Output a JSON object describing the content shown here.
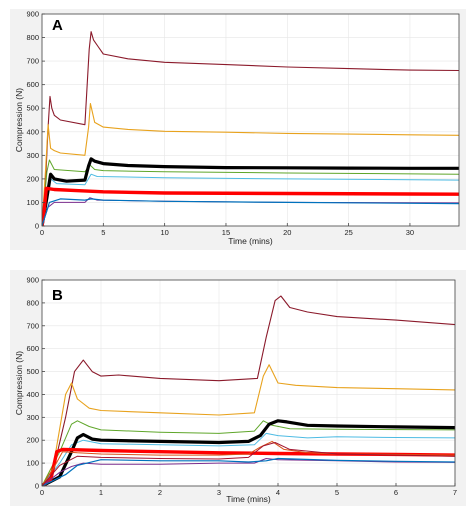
{
  "figure": {
    "colors": {
      "frame_bg": "#f2f2f2",
      "plot_bg": "#ffffff",
      "grid": "#e6e6e6"
    }
  },
  "chart_data": [
    {
      "panel_label": "A",
      "type": "line",
      "xlabel": "Time (mins)",
      "ylabel": "Compression (N)",
      "xlim": [
        0,
        34
      ],
      "ylim": [
        0,
        900
      ],
      "xticks": [
        0,
        5,
        10,
        15,
        20,
        25,
        30
      ],
      "yticks": [
        0,
        100,
        200,
        300,
        400,
        500,
        600,
        700,
        800,
        900
      ],
      "grid": true,
      "series": [
        {
          "color": "#8b1a2b",
          "width": 1.1,
          "x": [
            0,
            0.25,
            0.5,
            0.65,
            0.8,
            1.0,
            1.5,
            3.5,
            3.85,
            4.0,
            4.2,
            4.6,
            5,
            7,
            10,
            15,
            20,
            25,
            30,
            34
          ],
          "y": [
            0,
            150,
            420,
            550,
            500,
            470,
            450,
            430,
            750,
            825,
            790,
            760,
            730,
            710,
            695,
            685,
            675,
            668,
            662,
            660
          ]
        },
        {
          "color": "#e8a21d",
          "width": 1.1,
          "x": [
            0,
            0.3,
            0.5,
            0.7,
            1.0,
            1.5,
            3.5,
            3.8,
            3.95,
            4.3,
            5,
            7,
            10,
            15,
            20,
            25,
            30,
            34
          ],
          "y": [
            0,
            250,
            430,
            330,
            320,
            310,
            300,
            420,
            520,
            440,
            420,
            410,
            402,
            398,
            393,
            390,
            387,
            385
          ]
        },
        {
          "color": "#5fa62a",
          "width": 1.0,
          "x": [
            0,
            0.4,
            0.6,
            1.0,
            3.5,
            3.9,
            4.3,
            5,
            10,
            20,
            34
          ],
          "y": [
            0,
            230,
            280,
            240,
            230,
            260,
            240,
            235,
            230,
            225,
            220
          ]
        },
        {
          "color": "#4dbbe3",
          "width": 1.0,
          "x": [
            0,
            0.4,
            0.7,
            1.2,
            3.5,
            4.0,
            4.5,
            10,
            20,
            34
          ],
          "y": [
            0,
            160,
            200,
            180,
            175,
            220,
            210,
            205,
            200,
            195
          ]
        },
        {
          "color": "#000000",
          "width": 3.2,
          "x": [
            0,
            0.4,
            0.7,
            1.0,
            2,
            3.5,
            3.8,
            4.0,
            4.3,
            5,
            7,
            10,
            15,
            20,
            25,
            30,
            34
          ],
          "y": [
            0,
            120,
            220,
            200,
            190,
            195,
            255,
            285,
            275,
            265,
            257,
            252,
            248,
            247,
            246,
            245,
            245
          ]
        },
        {
          "color": "#ff0000",
          "width": 3.4,
          "x": [
            0,
            0.15,
            0.35,
            1.0,
            3,
            5,
            10,
            20,
            30,
            34
          ],
          "y": [
            0,
            50,
            160,
            155,
            150,
            145,
            140,
            138,
            136,
            135
          ]
        },
        {
          "color": "#7b2e8e",
          "width": 1.0,
          "x": [
            0,
            0.5,
            1.0,
            3.5,
            3.9,
            4.5,
            10,
            20,
            34
          ],
          "y": [
            0,
            80,
            100,
            100,
            120,
            110,
            105,
            100,
            98
          ]
        },
        {
          "color": "#0072bd",
          "width": 1.2,
          "x": [
            0,
            0.6,
            1.5,
            3.5,
            4.0,
            5,
            10,
            20,
            34
          ],
          "y": [
            0,
            100,
            115,
            110,
            115,
            110,
            105,
            100,
            95
          ]
        }
      ]
    },
    {
      "panel_label": "B",
      "type": "line",
      "xlabel": "Time (mins)",
      "ylabel": "Compression (N)",
      "xlim": [
        0,
        7
      ],
      "ylim": [
        0,
        900
      ],
      "xticks": [
        0,
        1,
        2,
        3,
        4,
        5,
        6,
        7
      ],
      "yticks": [
        0,
        100,
        200,
        300,
        400,
        500,
        600,
        700,
        800,
        900
      ],
      "grid": true,
      "series": [
        {
          "color": "#8b1a2b",
          "width": 1.1,
          "x": [
            0,
            0.2,
            0.4,
            0.55,
            0.7,
            0.85,
            1.0,
            1.3,
            2,
            3,
            3.65,
            3.8,
            3.95,
            4.05,
            4.2,
            4.5,
            5,
            6,
            7
          ],
          "y": [
            0,
            80,
            300,
            500,
            550,
            500,
            480,
            485,
            470,
            460,
            470,
            650,
            810,
            830,
            780,
            760,
            740,
            725,
            705
          ]
        },
        {
          "color": "#e8a21d",
          "width": 1.1,
          "x": [
            0,
            0.2,
            0.4,
            0.5,
            0.6,
            0.8,
            1.0,
            2,
            3,
            3.6,
            3.75,
            3.85,
            4.0,
            4.3,
            5,
            6,
            7
          ],
          "y": [
            0,
            100,
            400,
            450,
            380,
            340,
            330,
            320,
            310,
            320,
            480,
            530,
            450,
            440,
            430,
            425,
            420
          ]
        },
        {
          "color": "#5fa62a",
          "width": 1.0,
          "x": [
            0,
            0.3,
            0.5,
            0.6,
            0.8,
            1.0,
            2,
            3,
            3.6,
            3.75,
            3.9,
            4.2,
            5,
            7
          ],
          "y": [
            0,
            150,
            270,
            285,
            260,
            245,
            235,
            230,
            240,
            285,
            265,
            250,
            248,
            245
          ]
        },
        {
          "color": "#4dbbe3",
          "width": 1.0,
          "x": [
            0,
            0.3,
            0.5,
            0.7,
            1.0,
            2,
            3,
            3.6,
            3.8,
            4.0,
            4.5,
            5,
            6,
            7
          ],
          "y": [
            0,
            100,
            180,
            200,
            185,
            180,
            175,
            180,
            230,
            220,
            210,
            215,
            212,
            210
          ]
        },
        {
          "color": "#000000",
          "width": 3.2,
          "x": [
            0,
            0.3,
            0.5,
            0.6,
            0.7,
            0.85,
            1.0,
            2,
            3,
            3.5,
            3.7,
            3.85,
            4.0,
            4.15,
            4.5,
            5,
            6,
            7
          ],
          "y": [
            0,
            40,
            150,
            210,
            225,
            205,
            200,
            195,
            190,
            195,
            220,
            270,
            285,
            280,
            265,
            262,
            258,
            255
          ]
        },
        {
          "color": "#ff0000",
          "width": 3.4,
          "x": [
            0,
            0.15,
            0.25,
            0.35,
            0.6,
            1,
            2,
            3,
            4,
            5,
            6,
            7
          ],
          "y": [
            0,
            30,
            150,
            160,
            158,
            155,
            150,
            145,
            142,
            140,
            138,
            135
          ]
        },
        {
          "color": "#7b2e8e",
          "width": 1.0,
          "x": [
            0,
            0.3,
            0.5,
            0.7,
            1.0,
            2,
            3,
            3.6,
            3.8,
            4.0,
            5,
            6,
            7
          ],
          "y": [
            0,
            60,
            85,
            100,
            95,
            95,
            100,
            100,
            120,
            115,
            110,
            105,
            103
          ]
        },
        {
          "color": "#0072bd",
          "width": 1.2,
          "x": [
            0,
            0.4,
            0.6,
            1.0,
            2,
            3,
            3.5,
            3.8,
            4.0,
            5,
            6,
            7
          ],
          "y": [
            0,
            50,
            90,
            115,
            110,
            110,
            105,
            110,
            120,
            112,
            108,
            105
          ]
        },
        {
          "color": "#d95319",
          "width": 1.0,
          "x": [
            0,
            0.2,
            0.35,
            0.6,
            1,
            2,
            3,
            3.5,
            3.7,
            3.9,
            4.1,
            4.5,
            5,
            6,
            7
          ],
          "y": [
            0,
            80,
            150,
            145,
            140,
            135,
            135,
            140,
            170,
            195,
            160,
            145,
            140,
            138,
            135
          ]
        },
        {
          "color": "#a2142f",
          "width": 1.0,
          "x": [
            0,
            0.3,
            0.6,
            1,
            2,
            3,
            3.5,
            3.75,
            3.95,
            4.2,
            5,
            6,
            7
          ],
          "y": [
            0,
            90,
            130,
            125,
            120,
            118,
            125,
            175,
            190,
            160,
            140,
            135,
            130
          ]
        }
      ]
    }
  ]
}
